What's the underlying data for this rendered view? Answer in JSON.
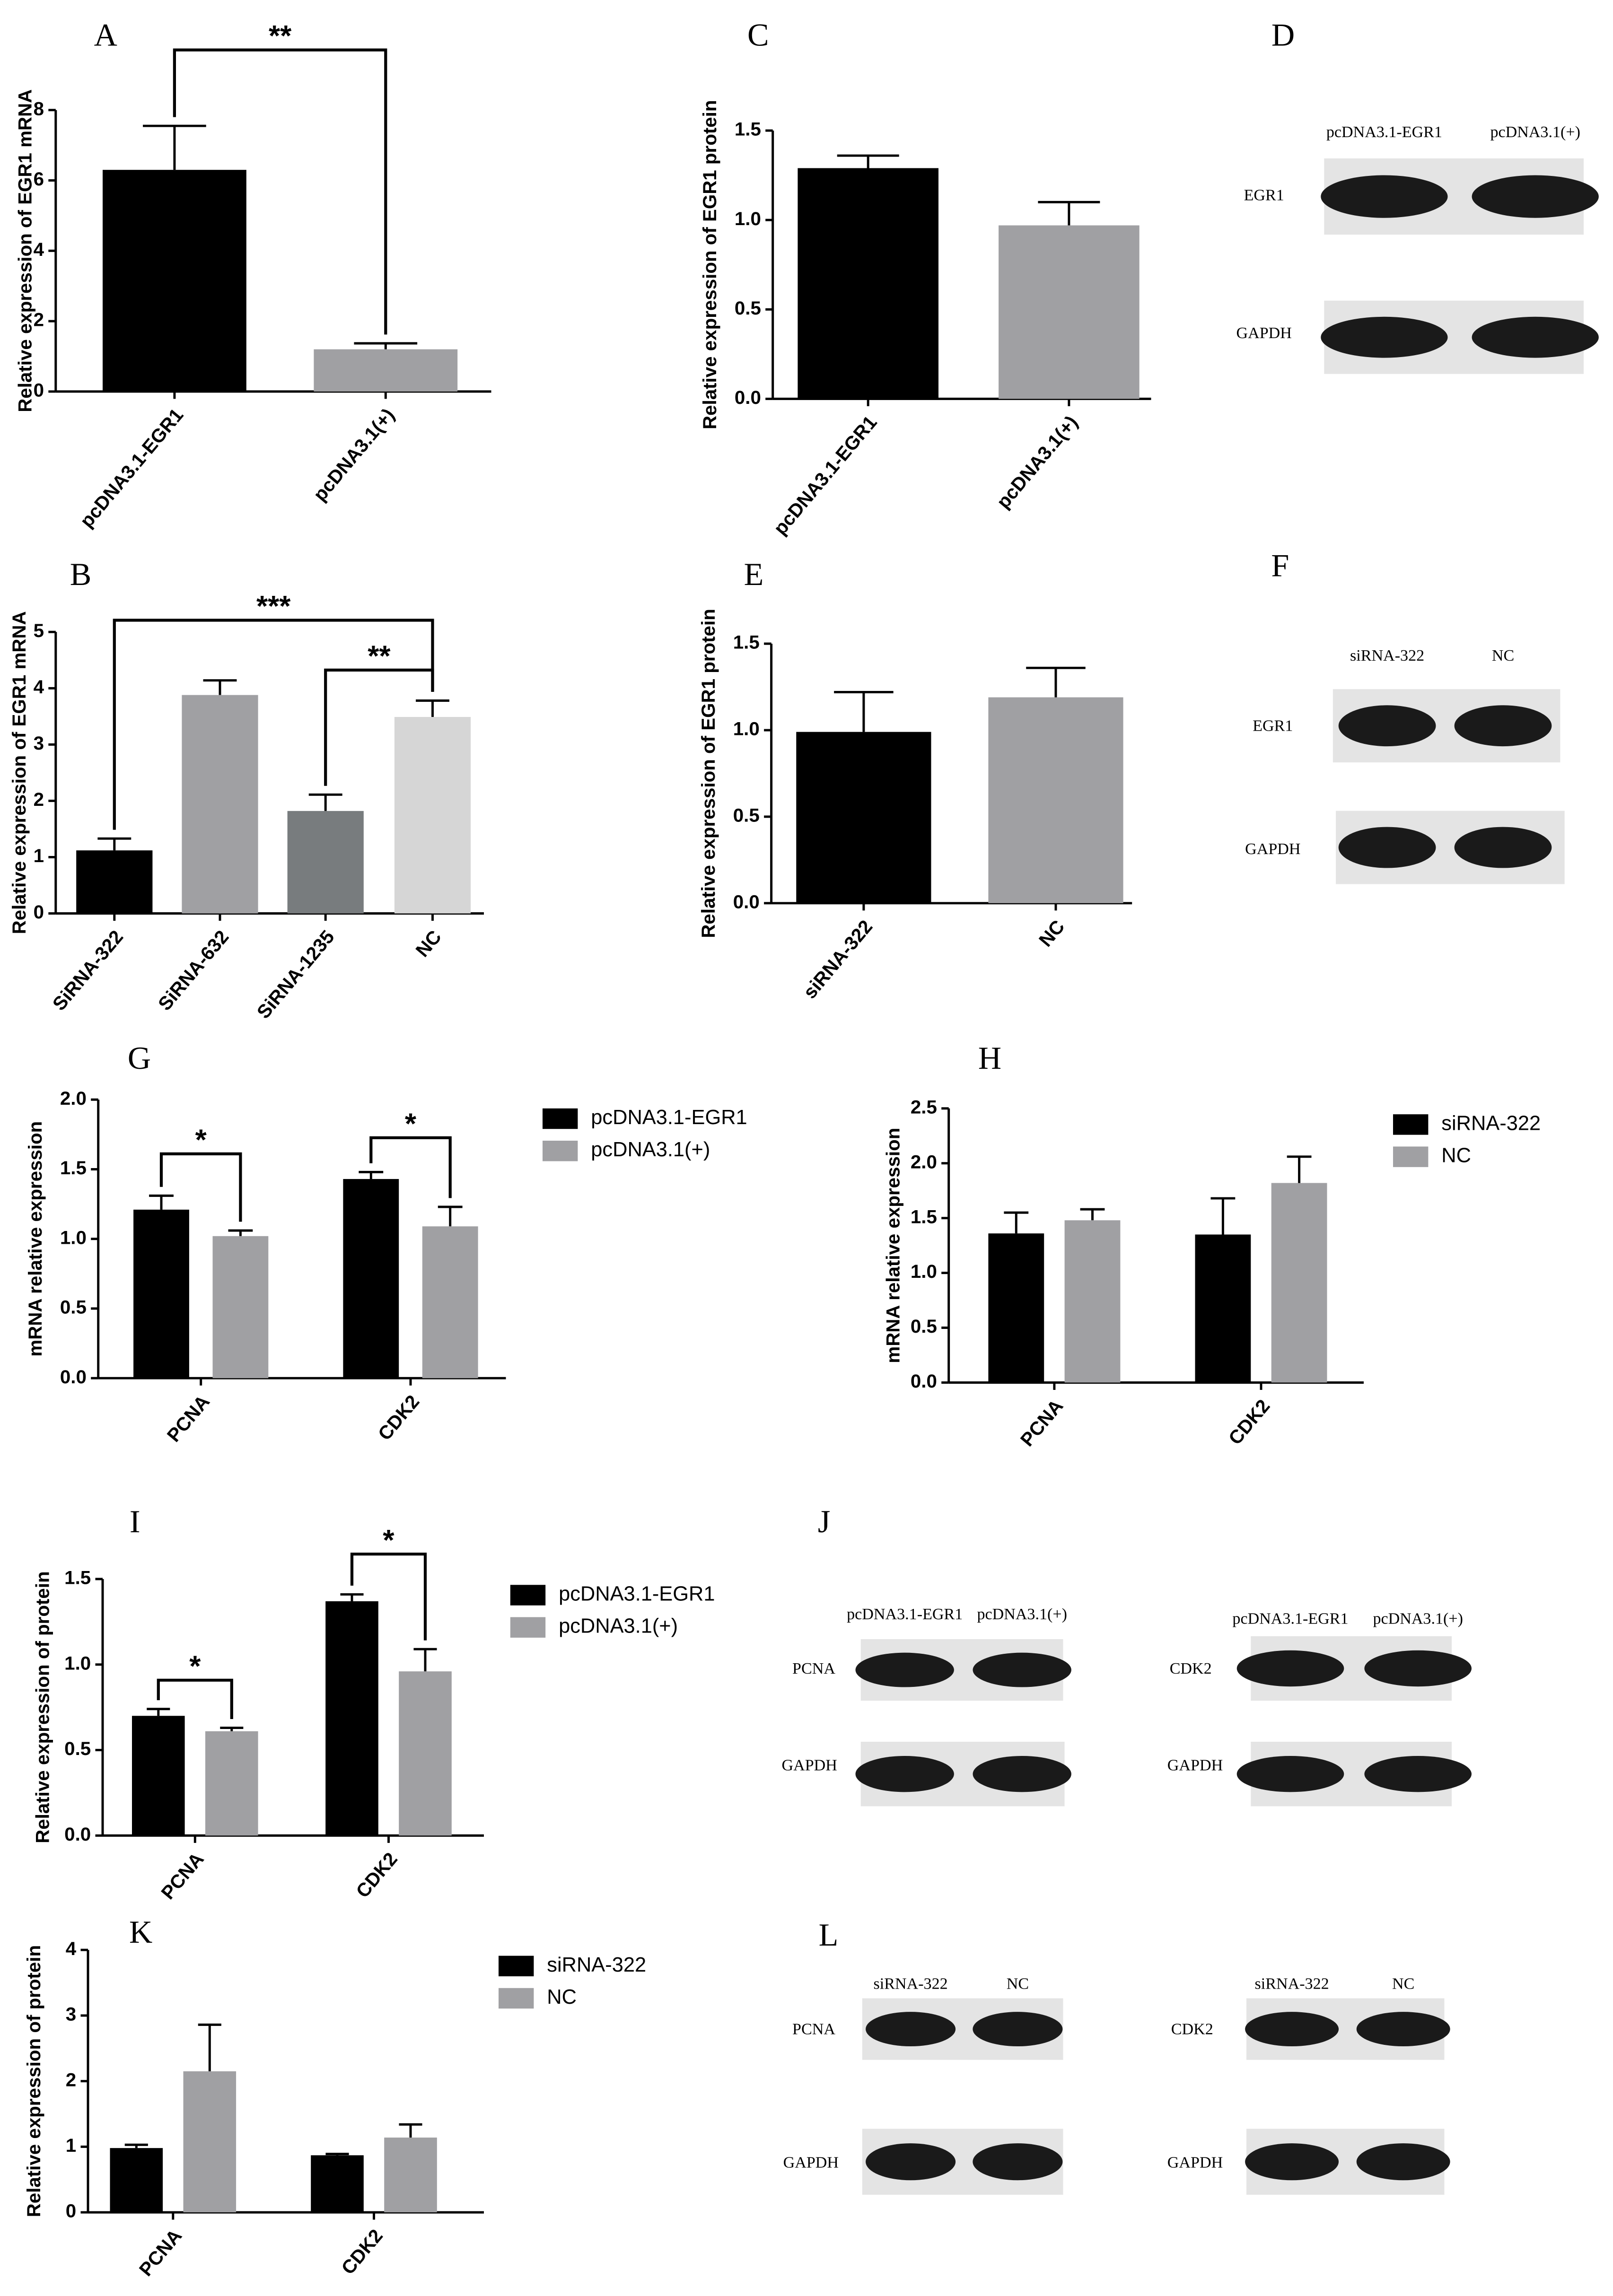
{
  "chart_data": [
    {
      "label": "A",
      "type": "bar",
      "ylabel": "Relative expression of EGR1 mRNA",
      "categories": [
        "pcDNA3.1-EGR1",
        "pcDNA3.1(+)"
      ],
      "values": [
        6.3,
        1.2
      ],
      "errors": [
        1.25,
        0.17
      ],
      "colors": [
        "#000000",
        "#a0a0a3"
      ],
      "ylim": [
        0,
        8
      ],
      "yticks": [
        0,
        2,
        4,
        6,
        8
      ],
      "annotations": [
        {
          "text": "**",
          "between": [
            "pcDNA3.1-EGR1",
            "pcDNA3.1(+)"
          ]
        }
      ]
    },
    {
      "label": "C",
      "type": "bar",
      "ylabel": "Relative expression of EGR1 protein",
      "categories": [
        "pcDNA3.1-EGR1",
        "pcDNA3.1(+)"
      ],
      "values": [
        1.29,
        0.97
      ],
      "errors": [
        0.07,
        0.13
      ],
      "colors": [
        "#000000",
        "#a0a0a3"
      ],
      "ylim": [
        0,
        1.5
      ],
      "yticks": [
        {
          "value": 0,
          "label": "0.0"
        },
        0.5,
        {
          "value": 1,
          "label": "1.0"
        },
        1.5
      ]
    },
    {
      "label": "B",
      "type": "bar",
      "ylabel": "Relative expression of EGR1 mRNA",
      "categories": [
        "SiRNA-322",
        "SiRNA-632",
        "SiRNA-1235",
        "NC"
      ],
      "values": [
        1.12,
        3.88,
        1.82,
        3.49
      ],
      "errors": [
        0.21,
        0.26,
        0.29,
        0.29
      ],
      "colors": [
        "#000000",
        "#a0a0a3",
        "#787c7e",
        "#d6d6d6"
      ],
      "ylim": [
        0,
        5
      ],
      "yticks": [
        0,
        1,
        2,
        3,
        4,
        5
      ],
      "annotations": [
        {
          "text": "***",
          "between": [
            "SiRNA-322",
            "NC"
          ]
        },
        {
          "text": "**",
          "between": [
            "SiRNA-1235",
            "NC"
          ]
        }
      ]
    },
    {
      "label": "E",
      "type": "bar",
      "ylabel": "Relative expression of EGR1 protein",
      "categories": [
        "siRNA-322",
        "NC"
      ],
      "values": [
        0.99,
        1.19
      ],
      "errors": [
        0.23,
        0.17
      ],
      "colors": [
        "#000000",
        "#a0a0a3"
      ],
      "ylim": [
        0,
        1.5
      ],
      "yticks": [
        {
          "value": 0,
          "label": "0.0"
        },
        0.5,
        {
          "value": 1,
          "label": "1.0"
        },
        1.5
      ]
    },
    {
      "label": "G",
      "type": "bar",
      "ylabel": "mRNA relative expression",
      "categories": [
        "PCNA",
        "CDK2"
      ],
      "series": [
        {
          "name": "pcDNA3.1-EGR1",
          "color": "#000000",
          "values": [
            1.21,
            1.43
          ],
          "errors": [
            0.1,
            0.05
          ]
        },
        {
          "name": "pcDNA3.1(+)",
          "color": "#a0a0a3",
          "values": [
            1.02,
            1.09
          ],
          "errors": [
            0.04,
            0.14
          ]
        }
      ],
      "ylim": [
        0,
        2
      ],
      "yticks": [
        {
          "value": 0,
          "label": "0.0"
        },
        0.5,
        {
          "value": 1,
          "label": "1.0"
        },
        1.5,
        {
          "value": 2,
          "label": "2.0"
        }
      ],
      "annotations": [
        {
          "text": "*",
          "category": "PCNA"
        },
        {
          "text": "*",
          "category": "CDK2"
        }
      ]
    },
    {
      "label": "H",
      "type": "bar",
      "ylabel": "mRNA relative expression",
      "categories": [
        "PCNA",
        "CDK2"
      ],
      "series": [
        {
          "name": "siRNA-322",
          "color": "#000000",
          "values": [
            1.36,
            1.35
          ],
          "errors": [
            0.19,
            0.33
          ]
        },
        {
          "name": "NC",
          "color": "#a0a0a3",
          "values": [
            1.48,
            1.82
          ],
          "errors": [
            0.1,
            0.24
          ]
        }
      ],
      "ylim": [
        0,
        2.5
      ],
      "yticks": [
        {
          "value": 0,
          "label": "0.0"
        },
        0.5,
        {
          "value": 1,
          "label": "1.0"
        },
        1.5,
        {
          "value": 2,
          "label": "2.0"
        },
        2.5
      ]
    },
    {
      "label": "I",
      "type": "bar",
      "ylabel": "Relative expression of protein",
      "categories": [
        "PCNA",
        "CDK2"
      ],
      "series": [
        {
          "name": "pcDNA3.1-EGR1",
          "color": "#000000",
          "values": [
            0.7,
            1.37
          ],
          "errors": [
            0.04,
            0.04
          ]
        },
        {
          "name": "pcDNA3.1(+)",
          "color": "#a0a0a3",
          "values": [
            0.61,
            0.96
          ],
          "errors": [
            0.02,
            0.13
          ]
        }
      ],
      "ylim": [
        0,
        1.5
      ],
      "yticks": [
        {
          "value": 0,
          "label": "0.0"
        },
        0.5,
        {
          "value": 1,
          "label": "1.0"
        },
        1.5
      ],
      "annotations": [
        {
          "text": "*",
          "category": "PCNA"
        },
        {
          "text": "*",
          "category": "CDK2"
        }
      ]
    },
    {
      "label": "K",
      "type": "bar",
      "ylabel": "Relative expression of protein",
      "categories": [
        "PCNA",
        "CDK2"
      ],
      "series": [
        {
          "name": "siRNA-322",
          "color": "#000000",
          "values": [
            0.98,
            0.87
          ],
          "errors": [
            0.05,
            0.02
          ]
        },
        {
          "name": "NC",
          "color": "#a0a0a3",
          "values": [
            2.15,
            1.14
          ],
          "errors": [
            0.71,
            0.2
          ]
        }
      ],
      "ylim": [
        0,
        4
      ],
      "yticks": [
        0,
        1,
        2,
        3,
        4
      ]
    }
  ],
  "blots": [
    {
      "label": "D",
      "lanes": [
        "pcDNA3.1-EGR1",
        "pcDNA3.1(+)"
      ],
      "rows": [
        "EGR1",
        "GAPDH"
      ]
    },
    {
      "label": "F",
      "lanes": [
        "siRNA-322",
        "NC"
      ],
      "rows": [
        "EGR1",
        "GAPDH"
      ]
    },
    {
      "label": "J",
      "lanes": [
        "pcDNA3.1-EGR1",
        "pcDNA3.1(+)"
      ],
      "rows": [
        "PCNA",
        "GAPDH"
      ]
    },
    {
      "lanes": [
        "pcDNA3.1-EGR1",
        "pcDNA3.1(+)"
      ],
      "rows": [
        "CDK2",
        "GAPDH"
      ]
    },
    {
      "label": "L",
      "lanes": [
        "siRNA-322",
        "NC"
      ],
      "rows": [
        "PCNA",
        "GAPDH"
      ]
    },
    {
      "lanes": [
        "siRNA-322",
        "NC"
      ],
      "rows": [
        "CDK2",
        "GAPDH"
      ]
    }
  ]
}
